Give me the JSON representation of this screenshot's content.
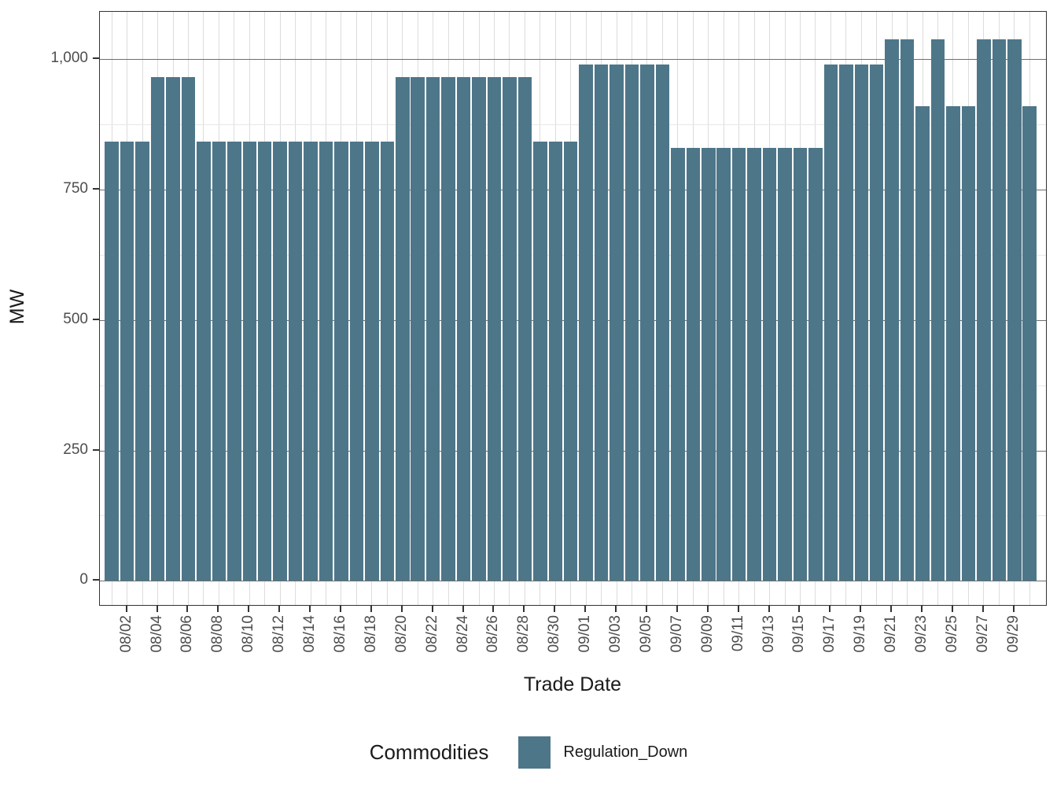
{
  "chart_data": {
    "type": "bar",
    "title": "",
    "xlabel": "Trade Date",
    "ylabel": "MW",
    "grid": "on",
    "legend": {
      "title": "Commodities",
      "position": "bottom",
      "entries": [
        {
          "label": "Regulation_Down",
          "color": "#4e7689"
        }
      ]
    },
    "bar_color": "#4e7689",
    "x": [
      "08/01",
      "08/02",
      "08/03",
      "08/04",
      "08/05",
      "08/06",
      "08/07",
      "08/08",
      "08/09",
      "08/10",
      "08/11",
      "08/12",
      "08/13",
      "08/14",
      "08/15",
      "08/16",
      "08/17",
      "08/18",
      "08/19",
      "08/20",
      "08/21",
      "08/22",
      "08/23",
      "08/24",
      "08/25",
      "08/26",
      "08/27",
      "08/28",
      "08/29",
      "08/30",
      "08/31",
      "09/01",
      "09/02",
      "09/03",
      "09/04",
      "09/05",
      "09/06",
      "09/07",
      "09/08",
      "09/09",
      "09/10",
      "09/11",
      "09/12",
      "09/13",
      "09/14",
      "09/15",
      "09/16",
      "09/17",
      "09/18",
      "09/19",
      "09/20",
      "09/21",
      "09/22",
      "09/23",
      "09/24",
      "09/25",
      "09/26",
      "09/27",
      "09/28",
      "09/29",
      "09/30"
    ],
    "values": [
      842,
      842,
      842,
      965,
      965,
      965,
      842,
      842,
      842,
      842,
      842,
      842,
      842,
      842,
      842,
      842,
      842,
      842,
      842,
      965,
      965,
      965,
      965,
      965,
      965,
      965,
      965,
      965,
      842,
      842,
      842,
      990,
      990,
      990,
      990,
      990,
      990,
      830,
      830,
      830,
      830,
      830,
      830,
      830,
      830,
      830,
      830,
      990,
      990,
      990,
      990,
      1038,
      1038,
      910,
      1038,
      910,
      910,
      1038,
      1038,
      1038,
      910
    ],
    "x_tick_labels": [
      "08/02",
      "08/04",
      "08/06",
      "08/08",
      "08/10",
      "08/12",
      "08/14",
      "08/16",
      "08/18",
      "08/20",
      "08/22",
      "08/24",
      "08/26",
      "08/28",
      "08/30",
      "09/01",
      "09/03",
      "09/05",
      "09/07",
      "09/09",
      "09/11",
      "09/13",
      "09/15",
      "09/17",
      "09/19",
      "09/21",
      "09/23",
      "09/25",
      "09/27",
      "09/29"
    ],
    "y_ticks": [
      0,
      250,
      500,
      750,
      1000
    ],
    "y_tick_labels": [
      "0",
      "250",
      "500",
      "750",
      "1,000"
    ],
    "y_minor_ticks": [
      125,
      375,
      625,
      875
    ],
    "ylim": [
      0,
      1090
    ]
  }
}
